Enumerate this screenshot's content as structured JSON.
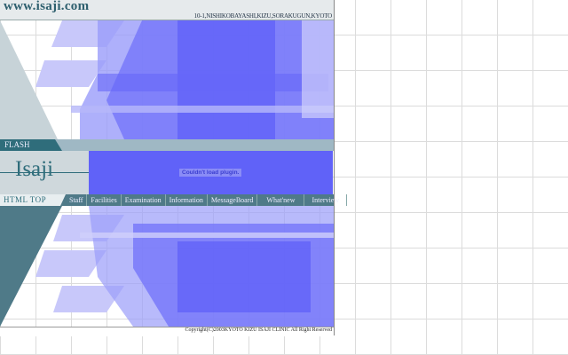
{
  "header": {
    "site": "www.isaji.com",
    "address": "10-1,NISHIKOBAYASHI,KIZU,SORAKUGUN,KYOTO"
  },
  "flash": {
    "label": "FLASH",
    "logo": "Isaji",
    "plugin_message": "Couldn't load plugin."
  },
  "nav": {
    "home": "HTML TOP",
    "items": [
      "Staff",
      "Facilities",
      "Examination",
      "Information",
      "MessageBoard",
      "What'new",
      "Interview"
    ]
  },
  "footer": {
    "copyright": "Copyright(C)2003KYOTO KIZU ISAJI CLINIC All Right Reserved"
  },
  "colors": {
    "accent": "#2f6d7b",
    "plugin": "#6062f8"
  }
}
